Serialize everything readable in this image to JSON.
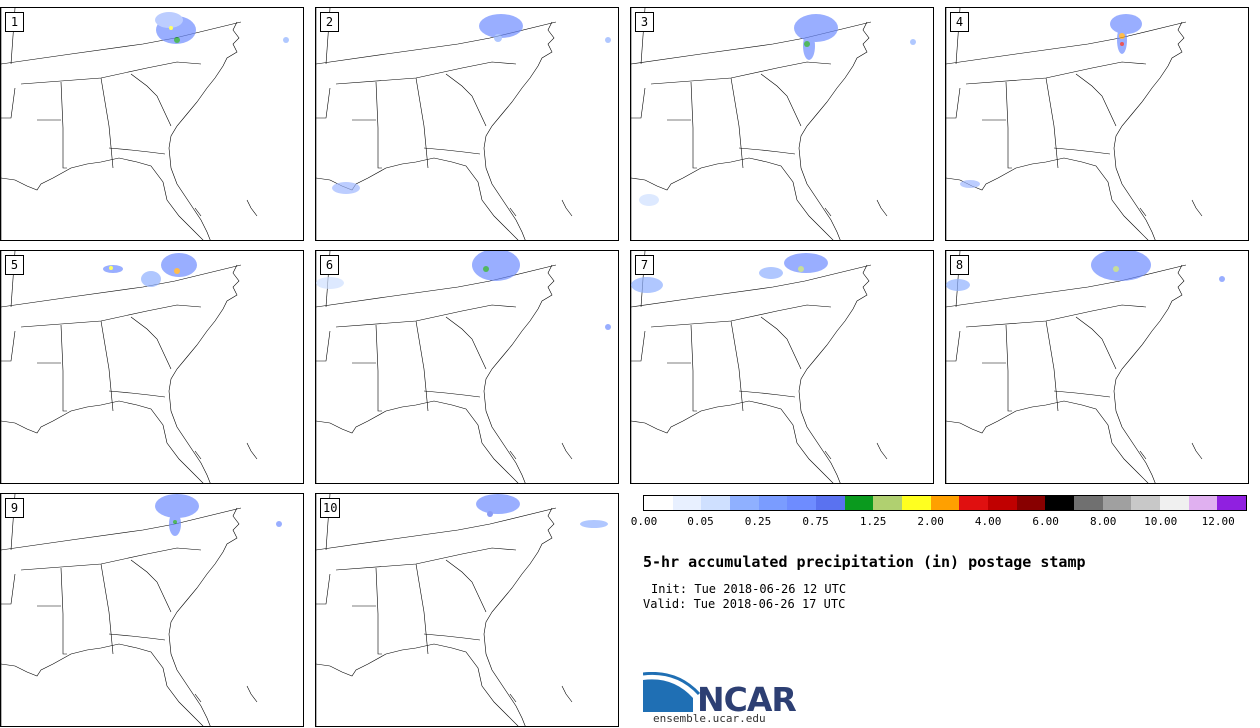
{
  "panels": [
    {
      "label": "1"
    },
    {
      "label": "2"
    },
    {
      "label": "3"
    },
    {
      "label": "4"
    },
    {
      "label": "5"
    },
    {
      "label": "6"
    },
    {
      "label": "7"
    },
    {
      "label": "8"
    },
    {
      "label": "9"
    },
    {
      "label": "10"
    }
  ],
  "colorbar": {
    "colors": [
      "#ffffff",
      "#e8f0ff",
      "#cfe0ff",
      "#8fb0ff",
      "#7a9cff",
      "#6e8cff",
      "#5a72f0",
      "#0a9a1e",
      "#b0d070",
      "#ffff20",
      "#ffa000",
      "#e01010",
      "#c00000",
      "#880000",
      "#000000",
      "#707070",
      "#a0a0a0",
      "#c8c8c8",
      "#f0f0f0",
      "#e0b0f0",
      "#9020e0"
    ],
    "ticks": [
      "0.00",
      "0.05",
      "0.25",
      "0.75",
      "1.25",
      "2.00",
      "4.00",
      "6.00",
      "8.00",
      "10.00",
      "12.00"
    ]
  },
  "title": "5-hr accumulated precipitation (in) postage stamp",
  "init_text": "Init: Tue 2018-06-26 12 UTC",
  "valid_text": "Valid: Tue 2018-06-26 17 UTC",
  "logo": {
    "word": "NCAR",
    "url": "ensemble.ucar.edu"
  }
}
